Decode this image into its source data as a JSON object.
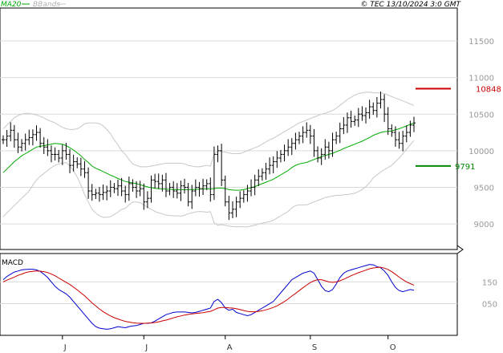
{
  "header": {
    "legend_ma": "MA20",
    "legend_bb": "BBands",
    "copyright": "© TEC 13/10/2024 3:0 GMT"
  },
  "colors": {
    "price_bars": "#000000",
    "ma": "#00aa00",
    "bbands": "#c8c8c8",
    "resistance": "#cc0000",
    "support": "#008800",
    "macd": "#0000cc",
    "signal": "#cc0000",
    "grid": "#d9d9d9"
  },
  "chart_data": [
    {
      "type": "ohlc",
      "title": "",
      "ylim": [
        8650,
        11950
      ],
      "yticks": [
        9000,
        9500,
        10000,
        10500,
        11000,
        11500
      ],
      "ytick_labels": [
        "9000",
        "9500",
        "10000",
        "10500",
        "11000",
        "11500"
      ],
      "month_labels": [
        {
          "label": "J",
          "index": 16
        },
        {
          "label": "J",
          "index": 38
        },
        {
          "label": "A",
          "index": 60
        },
        {
          "label": "S",
          "index": 83
        },
        {
          "label": "O",
          "index": 104
        }
      ],
      "close": [
        10150,
        10200,
        10280,
        10150,
        10050,
        10100,
        10150,
        10180,
        10220,
        10250,
        10100,
        10050,
        10000,
        9950,
        9950,
        9900,
        10000,
        9950,
        9800,
        9850,
        9820,
        9750,
        9700,
        9450,
        9400,
        9420,
        9400,
        9430,
        9450,
        9500,
        9480,
        9520,
        9450,
        9400,
        9550,
        9500,
        9450,
        9480,
        9300,
        9350,
        9600,
        9580,
        9550,
        9600,
        9450,
        9500,
        9450,
        9420,
        9520,
        9500,
        9300,
        9450,
        9500,
        9480,
        9520,
        9550,
        9400,
        9950,
        10000,
        9600,
        9300,
        9150,
        9200,
        9300,
        9350,
        9400,
        9450,
        9500,
        9600,
        9650,
        9700,
        9750,
        9800,
        9850,
        9900,
        9950,
        10000,
        10050,
        10100,
        10150,
        10200,
        10250,
        10280,
        10200,
        10000,
        9900,
        9950,
        10050,
        10000,
        10150,
        10200,
        10300,
        10350,
        10450,
        10400,
        10420,
        10500,
        10480,
        10520,
        10600,
        10550,
        10650,
        10700,
        10500,
        10300,
        10250,
        10150,
        10100,
        10200,
        10250,
        10350,
        10380
      ],
      "series": [
        {
          "name": "MA20",
          "values": [
            9700,
            9750,
            9800,
            9850,
            9890,
            9930,
            9960,
            9990,
            10020,
            10050,
            10060,
            10070,
            10080,
            10090,
            10100,
            10095,
            10090,
            10070,
            10040,
            10010,
            9970,
            9930,
            9880,
            9840,
            9790,
            9760,
            9740,
            9715,
            9690,
            9665,
            9645,
            9620,
            9600,
            9580,
            9570,
            9560,
            9550,
            9535,
            9520,
            9505,
            9495,
            9485,
            9480,
            9478,
            9475,
            9473,
            9470,
            9470,
            9468,
            9468,
            9470,
            9470,
            9472,
            9475,
            9478,
            9480,
            9478,
            9482,
            9490,
            9490,
            9480,
            9470,
            9462,
            9460,
            9461,
            9470,
            9480,
            9495,
            9510,
            9530,
            9550,
            9570,
            9590,
            9610,
            9640,
            9670,
            9700,
            9730,
            9770,
            9800,
            9820,
            9830,
            9840,
            9860,
            9880,
            9900,
            9920,
            9935,
            9950,
            9965,
            9985,
            10005,
            10030,
            10050,
            10070,
            10090,
            10110,
            10130,
            10155,
            10180,
            10210,
            10230,
            10250,
            10260,
            10265,
            10270,
            10285,
            10300,
            10320,
            10340,
            10360,
            10380
          ]
        },
        {
          "name": "BBands-upper",
          "values": [
            10300,
            10350,
            10400,
            10450,
            10480,
            10500,
            10510,
            10510,
            10500,
            10490,
            10470,
            10450,
            10420,
            10400,
            10380,
            10350,
            10320,
            10300,
            10290,
            10290,
            10300,
            10330,
            10370,
            10380,
            10380,
            10380,
            10370,
            10340,
            10290,
            10230,
            10150,
            10080,
            10000,
            9950,
            9880,
            9820,
            9800,
            9780,
            9780,
            9780,
            9790,
            9800,
            9810,
            9820,
            9830,
            9830,
            9830,
            9830,
            9830,
            9820,
            9800,
            9790,
            9780,
            9780,
            9790,
            9800,
            9790,
            9950,
            10000,
            9990,
            9980,
            9970,
            9960,
            9960,
            9960,
            9980,
            10000,
            10020,
            10040,
            10060,
            10090,
            10120,
            10150,
            10170,
            10200,
            10230,
            10260,
            10290,
            10320,
            10350,
            10380,
            10400,
            10420,
            10440,
            10460,
            10480,
            10500,
            10510,
            10530,
            10550,
            10580,
            10620,
            10660,
            10700,
            10730,
            10760,
            10780,
            10790,
            10800,
            10800,
            10790,
            10790,
            10790,
            10780,
            10760,
            10740,
            10720,
            10700,
            10680,
            10660,
            10640,
            10620
          ]
        },
        {
          "name": "BBands-lower",
          "values": [
            9100,
            9150,
            9200,
            9250,
            9300,
            9350,
            9400,
            9450,
            9530,
            9600,
            9650,
            9690,
            9730,
            9770,
            9800,
            9820,
            9830,
            9840,
            9790,
            9730,
            9640,
            9530,
            9400,
            9300,
            9200,
            9150,
            9110,
            9090,
            9090,
            9100,
            9130,
            9160,
            9200,
            9210,
            9260,
            9300,
            9300,
            9290,
            9260,
            9230,
            9200,
            9170,
            9150,
            9140,
            9120,
            9115,
            9110,
            9110,
            9106,
            9116,
            9140,
            9150,
            9164,
            9170,
            9166,
            9160,
            9166,
            9014,
            8980,
            8990,
            8980,
            8970,
            8964,
            8960,
            8962,
            8960,
            8960,
            8970,
            8980,
            9000,
            9010,
            9020,
            9030,
            9050,
            9080,
            9110,
            9140,
            9170,
            9220,
            9250,
            9260,
            9260,
            9260,
            9280,
            9300,
            9320,
            9340,
            9360,
            9370,
            9380,
            9390,
            9390,
            9400,
            9400,
            9410,
            9420,
            9440,
            9470,
            9510,
            9560,
            9630,
            9670,
            9710,
            9740,
            9770,
            9800,
            9850,
            9900,
            9960,
            10020,
            10080,
            10140
          ]
        }
      ],
      "annotations": [
        {
          "label": "10848",
          "value": 10848,
          "role": "resistance"
        },
        {
          "label": "9791",
          "value": 9791,
          "role": "support"
        }
      ]
    },
    {
      "type": "line",
      "title": "MACD",
      "ylim": [
        -95,
        280
      ],
      "yticks": [
        50,
        150
      ],
      "ytick_labels": [
        "050",
        "150"
      ],
      "series": [
        {
          "name": "MACD",
          "values": [
            160,
            175,
            185,
            195,
            200,
            205,
            207,
            208,
            208,
            205,
            198,
            185,
            170,
            150,
            130,
            115,
            105,
            95,
            80,
            60,
            40,
            20,
            0,
            -20,
            -40,
            -55,
            -62,
            -65,
            -67,
            -65,
            -60,
            -55,
            -58,
            -60,
            -55,
            -52,
            -50,
            -45,
            -40,
            -40,
            -38,
            -30,
            -20,
            -10,
            0,
            5,
            10,
            12,
            12,
            12,
            10,
            8,
            10,
            15,
            20,
            25,
            30,
            60,
            70,
            55,
            30,
            20,
            25,
            10,
            5,
            0,
            -5,
            0,
            10,
            20,
            30,
            40,
            50,
            60,
            80,
            100,
            120,
            140,
            160,
            170,
            180,
            190,
            195,
            200,
            190,
            160,
            130,
            110,
            105,
            115,
            140,
            170,
            190,
            200,
            205,
            210,
            215,
            220,
            225,
            230,
            228,
            220,
            215,
            200,
            180,
            150,
            125,
            110,
            105,
            110,
            115,
            112
          ]
        },
        {
          "name": "Signal",
          "values": [
            150,
            158,
            165,
            172,
            180,
            186,
            192,
            196,
            198,
            200,
            199,
            197,
            193,
            186,
            178,
            168,
            158,
            148,
            138,
            126,
            113,
            100,
            86,
            70,
            54,
            40,
            26,
            14,
            3,
            -6,
            -14,
            -20,
            -26,
            -31,
            -34,
            -37,
            -39,
            -40,
            -40,
            -39,
            -38,
            -36,
            -33,
            -29,
            -25,
            -20,
            -15,
            -10,
            -6,
            -2,
            1,
            3,
            5,
            7,
            9,
            12,
            15,
            22,
            30,
            33,
            33,
            31,
            30,
            27,
            23,
            19,
            15,
            13,
            13,
            15,
            18,
            22,
            27,
            33,
            40,
            50,
            60,
            72,
            85,
            97,
            110,
            123,
            135,
            147,
            155,
            160,
            160,
            155,
            150,
            148,
            150,
            155,
            162,
            170,
            178,
            185,
            192,
            198,
            204,
            210,
            214,
            216,
            217,
            213,
            207,
            197,
            185,
            172,
            160,
            150,
            142,
            135
          ]
        }
      ]
    }
  ]
}
